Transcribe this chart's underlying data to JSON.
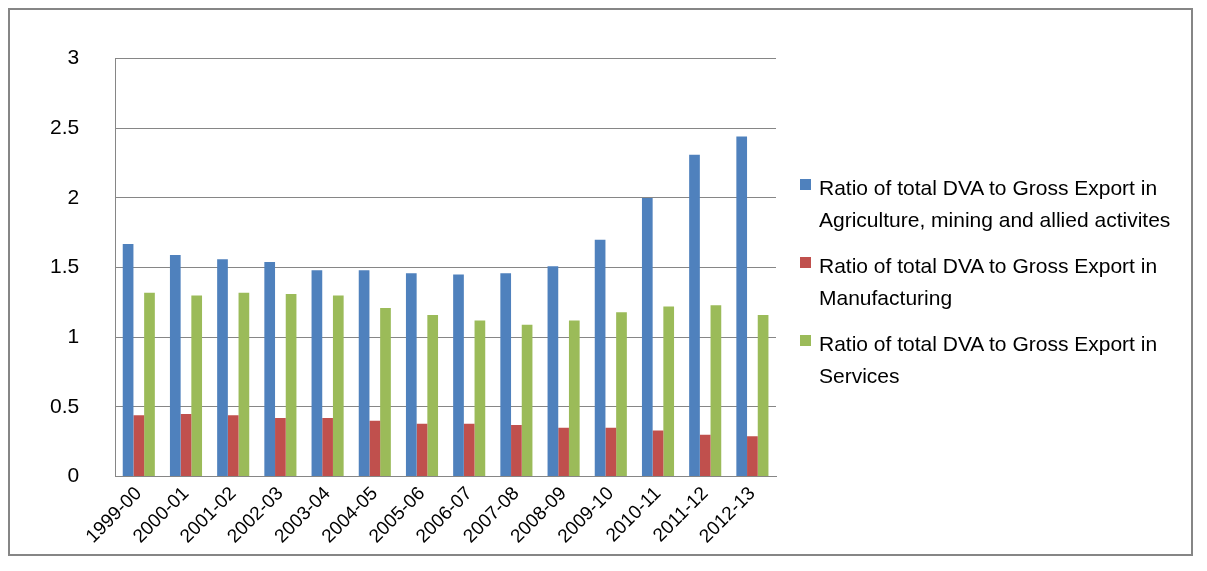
{
  "chart_data": {
    "type": "bar",
    "categories": [
      "1999-00",
      "2000-01",
      "2001-02",
      "2002-03",
      "2003-04",
      "2004-05",
      "2005-06",
      "2006-07",
      "2007-08",
      "2008-09",
      "2009-10",
      "2010-11",
      "2011-12",
      "2012-13"
    ],
    "series": [
      {
        "name": "Ratio of total DVA to Gross Export in Agriculture, mining and allied activites",
        "color": "#4f81bd",
        "values": [
          1.67,
          1.59,
          1.56,
          1.54,
          1.48,
          1.48,
          1.46,
          1.45,
          1.46,
          1.51,
          1.7,
          2.0,
          2.31,
          2.44
        ]
      },
      {
        "name": "Ratio of total DVA to Gross Export in Manufacturing",
        "color": "#c0504d",
        "values": [
          0.44,
          0.45,
          0.44,
          0.42,
          0.42,
          0.4,
          0.38,
          0.38,
          0.37,
          0.35,
          0.35,
          0.33,
          0.3,
          0.29
        ]
      },
      {
        "name": "Ratio of total DVA to Gross Export in Services",
        "color": "#9bbb59",
        "values": [
          1.32,
          1.3,
          1.32,
          1.31,
          1.3,
          1.21,
          1.16,
          1.12,
          1.09,
          1.12,
          1.18,
          1.22,
          1.23,
          1.16
        ]
      }
    ],
    "ylim": [
      0,
      3
    ],
    "yticks": [
      0,
      0.5,
      1,
      1.5,
      2,
      2.5,
      3
    ],
    "grid": "y",
    "legend": "right"
  }
}
